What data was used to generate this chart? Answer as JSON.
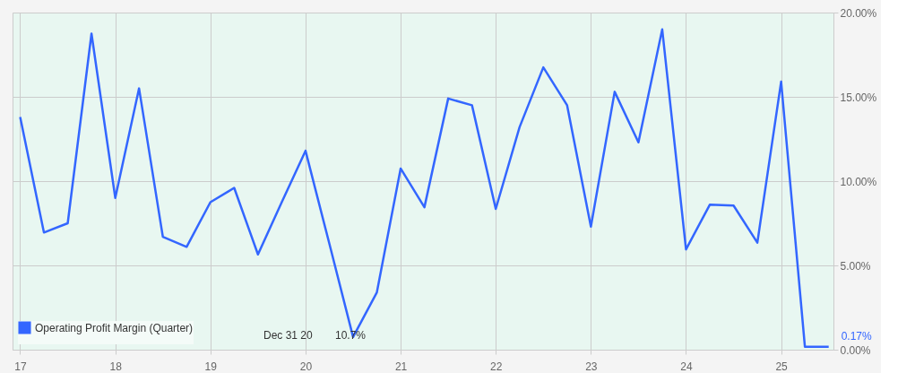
{
  "chart_data": {
    "type": "line",
    "x": [
      17.0,
      17.25,
      17.5,
      17.75,
      18.0,
      18.25,
      18.5,
      18.75,
      19.0,
      19.25,
      19.5,
      19.75,
      20.0,
      20.25,
      20.5,
      20.75,
      21.0,
      21.25,
      21.5,
      21.75,
      22.0,
      22.25,
      22.5,
      22.75,
      23.0,
      23.25,
      23.5,
      23.75,
      24.0,
      24.25,
      24.5,
      24.75,
      25.0,
      25.25,
      25.5
    ],
    "series": [
      {
        "name": "Operating Profit Margin (Quarter)",
        "color": "#3366ff",
        "values": [
          13.8,
          6.95,
          7.5,
          18.75,
          9.0,
          15.5,
          6.7,
          6.1,
          8.75,
          9.6,
          5.65,
          8.75,
          11.8,
          6.3,
          0.75,
          3.4,
          10.75,
          8.45,
          14.9,
          14.5,
          8.35,
          13.2,
          16.75,
          14.5,
          7.3,
          15.3,
          12.3,
          19.0,
          5.95,
          8.6,
          8.55,
          6.35,
          15.9,
          0.17,
          0.17
        ]
      }
    ],
    "xlim": [
      16.92,
      25.55
    ],
    "xticks": [
      17,
      18,
      19,
      20,
      21,
      22,
      23,
      24,
      25
    ],
    "ylim": [
      0,
      20
    ],
    "yticks": [
      {
        "value": 0,
        "label": "0.00%"
      },
      {
        "value": 5,
        "label": "5.00%"
      },
      {
        "value": 10,
        "label": "10.00%"
      },
      {
        "value": 15,
        "label": "15.00%"
      },
      {
        "value": 20,
        "label": "20.00%"
      }
    ],
    "annotations": [
      "Dec 31 20",
      "10.7%",
      {
        "text": "0.17%",
        "x": 25.5,
        "y": 0.17
      }
    ],
    "grid": true,
    "legend": "bottom left",
    "line_style": "solid",
    "marker": "none"
  }
}
